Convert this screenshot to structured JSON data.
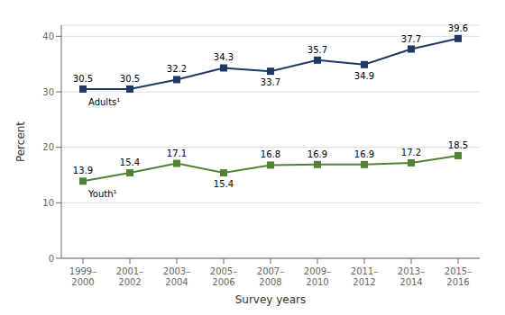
{
  "chart_data": {
    "type": "line",
    "xlabel": "Survey years",
    "ylabel": "Percent",
    "categories": [
      "1999–\n2000",
      "2001–\n2002",
      "2003–\n2004",
      "2005–\n2006",
      "2007–\n2008",
      "2009–\n2010",
      "2011–\n2012",
      "2013–\n2014",
      "2015–\n2016"
    ],
    "series": [
      {
        "name": "Adults¹",
        "color": "#1f3864",
        "marker": "square",
        "values": [
          30.5,
          30.5,
          32.2,
          34.3,
          33.7,
          35.7,
          34.9,
          37.7,
          39.6
        ]
      },
      {
        "name": "Youth¹",
        "color": "#538135",
        "marker": "square",
        "values": [
          13.9,
          15.4,
          17.1,
          15.4,
          16.8,
          16.9,
          16.9,
          17.2,
          18.5
        ]
      }
    ],
    "ylim": [
      0,
      42
    ],
    "yticks": [
      0,
      10,
      20,
      30,
      40
    ],
    "grid": true,
    "data_labels": true
  }
}
